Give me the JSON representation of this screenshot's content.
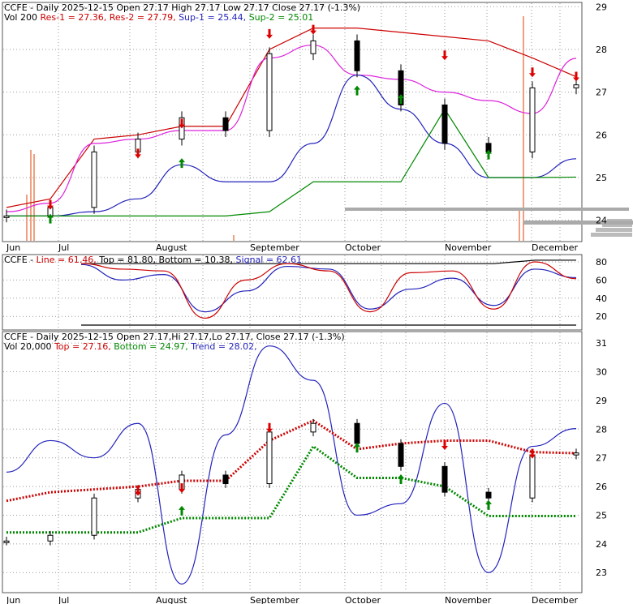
{
  "colors": {
    "res": "#cc0000",
    "sup": "#2222bb",
    "mag": "#dd22dd",
    "green": "#008800",
    "sig_red": "#cc0000",
    "sig_blue": "#2222bb",
    "grid": "#999999",
    "vol": "#f0a080",
    "arrow_down": "#dd0000",
    "arrow_up": "#008800"
  },
  "panels": {
    "top": {
      "ticker": "CCFE",
      "title": " - Daily 2025-12-15 Open 27.17  High 27.17  Low 27.17  Close 27.17 (-1.3%)",
      "vol_label": "Vol 200",
      "res1": "Res-1 = 27.36,",
      "res2": "Res-2 = 27.79,",
      "sup1": "Sup-1 = 25.44,",
      "sup2": "Sup-2 = 25.01"
    },
    "mid": {
      "ticker": "CCFE",
      "line": "Line = 61.46,",
      "top": "Top = 81.80,",
      "bottom": "Bottom = 10.38,",
      "signal": "Signal = 62.61"
    },
    "bot": {
      "ticker": "CCFE",
      "title": " - Daily 2025-12-15 Open 27.17,Hi 27.17,Lo 27.17, Close 27.17 (-1.3%)",
      "vol_label": "Vol 20,000",
      "top": "Top = 27.16,",
      "bottom": "Bottom = 24.97,",
      "trend": "Trend = 28.02,"
    }
  },
  "months": [
    "Jun",
    "Jul",
    "August",
    "September",
    "October",
    "November",
    "December"
  ],
  "chart_data": [
    {
      "type": "candlestick",
      "panel": "price-resistance-support",
      "x": [
        "2025-06-02",
        "2025-06-16",
        "2025-07-01",
        "2025-07-15",
        "2025-08-01",
        "2025-08-15",
        "2025-09-01",
        "2025-09-15",
        "2025-10-01",
        "2025-10-15",
        "2025-11-01",
        "2025-11-15",
        "2025-12-01",
        "2025-12-15"
      ],
      "close": [
        24.1,
        24.3,
        25.6,
        25.9,
        26.4,
        26.1,
        27.9,
        28.2,
        27.5,
        26.7,
        25.8,
        25.6,
        27.1,
        27.17
      ],
      "series": [
        {
          "name": "Res-1",
          "values": [
            24.3,
            24.5,
            25.9,
            26.0,
            26.2,
            26.2,
            28.0,
            28.5,
            28.5,
            28.4,
            28.3,
            28.2,
            27.8,
            27.36
          ]
        },
        {
          "name": "Res-2",
          "values": [
            24.2,
            24.4,
            25.8,
            25.9,
            26.1,
            26.1,
            27.8,
            28.1,
            27.4,
            27.3,
            27.0,
            26.8,
            26.5,
            27.79
          ]
        },
        {
          "name": "Sup-1",
          "values": [
            24.1,
            24.1,
            24.2,
            24.5,
            25.3,
            24.9,
            24.9,
            25.8,
            27.4,
            26.6,
            25.8,
            25.0,
            25.0,
            25.44
          ]
        },
        {
          "name": "Sup-2",
          "values": [
            24.1,
            24.1,
            24.1,
            24.1,
            24.1,
            24.1,
            24.2,
            24.9,
            24.9,
            24.9,
            26.6,
            25.0,
            25.0,
            25.01
          ]
        }
      ],
      "y_ticks": [
        24,
        25,
        26,
        27,
        28,
        29
      ],
      "ylim": [
        23.5,
        29.1
      ]
    },
    {
      "type": "line",
      "panel": "oscillator",
      "x": [
        "2025-06-15",
        "2025-07-01",
        "2025-07-15",
        "2025-08-01",
        "2025-08-15",
        "2025-09-01",
        "2025-09-15",
        "2025-10-01",
        "2025-10-15",
        "2025-11-01",
        "2025-11-15",
        "2025-12-01",
        "2025-12-15"
      ],
      "series": [
        {
          "name": "Line",
          "values": [
            78,
            72,
            70,
            18,
            60,
            78,
            70,
            25,
            68,
            70,
            28,
            80,
            61.46
          ]
        },
        {
          "name": "Signal",
          "values": [
            77,
            60,
            66,
            25,
            48,
            75,
            72,
            28,
            50,
            62,
            32,
            72,
            62.61
          ]
        },
        {
          "name": "Top",
          "values": [
            78,
            78,
            78,
            78,
            78,
            78,
            78,
            78,
            78,
            78,
            78,
            81.8,
            81.8
          ]
        },
        {
          "name": "Bottom",
          "values": [
            10.38,
            10.38,
            10.38,
            10.38,
            10.38,
            10.38,
            10.38,
            10.38,
            10.38,
            10.38,
            10.38,
            10.38,
            10.38
          ]
        }
      ],
      "y_ticks": [
        20,
        40,
        60,
        80
      ],
      "ylim": [
        5,
        88
      ]
    },
    {
      "type": "candlestick",
      "panel": "price-trend",
      "x": [
        "2025-06-02",
        "2025-06-16",
        "2025-07-01",
        "2025-07-15",
        "2025-08-01",
        "2025-08-15",
        "2025-09-01",
        "2025-09-15",
        "2025-10-01",
        "2025-10-15",
        "2025-11-01",
        "2025-11-15",
        "2025-12-01",
        "2025-12-15"
      ],
      "close": [
        24.1,
        24.3,
        25.6,
        25.9,
        26.4,
        26.1,
        27.9,
        28.2,
        27.5,
        26.7,
        25.8,
        25.6,
        27.1,
        27.17
      ],
      "series": [
        {
          "name": "Trend",
          "values": [
            26.5,
            27.6,
            27.0,
            28.2,
            22.6,
            27.8,
            30.9,
            29.7,
            25.0,
            25.4,
            28.9,
            23.0,
            27.4,
            28.02
          ]
        },
        {
          "name": "Top",
          "values": [
            25.5,
            25.8,
            25.9,
            26.0,
            26.2,
            26.2,
            27.6,
            28.3,
            27.3,
            27.5,
            27.6,
            27.6,
            27.2,
            27.16
          ]
        },
        {
          "name": "Bottom",
          "values": [
            24.4,
            24.4,
            24.4,
            24.4,
            24.9,
            24.9,
            24.9,
            27.4,
            26.3,
            26.3,
            26.0,
            24.97,
            24.97,
            24.97
          ]
        }
      ],
      "y_ticks": [
        23,
        24,
        25,
        26,
        27,
        28,
        29,
        30,
        31
      ],
      "ylim": [
        22.3,
        31.4
      ]
    }
  ]
}
